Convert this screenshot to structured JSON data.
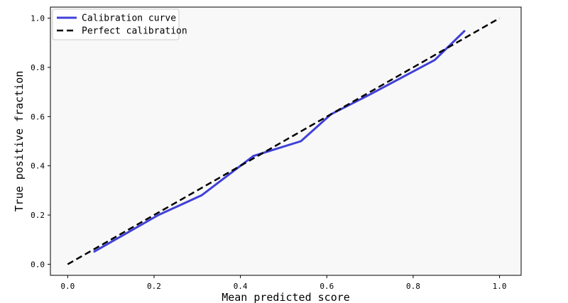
{
  "chart_data": {
    "type": "line",
    "title": "",
    "xlabel": "Mean predicted score",
    "ylabel": "True positive fraction",
    "xlim": [
      -0.04,
      1.05
    ],
    "ylim": [
      -0.045,
      1.045
    ],
    "xticks": [
      0.0,
      0.2,
      0.4,
      0.6,
      0.8,
      1.0
    ],
    "xtick_labels": [
      "0.0",
      "0.2",
      "0.4",
      "0.6",
      "0.8",
      "1.0"
    ],
    "yticks": [
      0.0,
      0.2,
      0.4,
      0.6,
      0.8,
      1.0
    ],
    "ytick_labels": [
      "0.0",
      "0.2",
      "0.4",
      "0.6",
      "0.8",
      "1.0"
    ],
    "grid": false,
    "legend_position": "top-left",
    "background_color": "#f8f8f8",
    "series": [
      {
        "name": "Calibration curve",
        "color": "#4040d8",
        "style": "solid",
        "x": [
          0.06,
          0.13,
          0.21,
          0.31,
          0.43,
          0.54,
          0.61,
          0.7,
          0.85,
          0.92
        ],
        "y": [
          0.05,
          0.12,
          0.2,
          0.28,
          0.44,
          0.5,
          0.61,
          0.69,
          0.83,
          0.95
        ]
      },
      {
        "name": "Perfect calibration",
        "color": "#000000",
        "style": "dashed",
        "x": [
          0.0,
          1.0
        ],
        "y": [
          0.0,
          1.0
        ]
      }
    ]
  }
}
